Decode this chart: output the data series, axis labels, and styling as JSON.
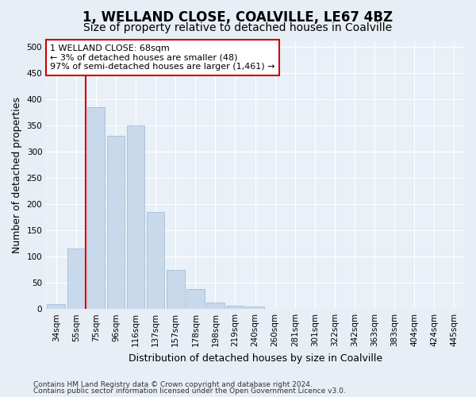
{
  "title_line1": "1, WELLAND CLOSE, COALVILLE, LE67 4BZ",
  "title_line2": "Size of property relative to detached houses in Coalville",
  "xlabel": "Distribution of detached houses by size in Coalville",
  "ylabel": "Number of detached properties",
  "categories": [
    "34sqm",
    "55sqm",
    "75sqm",
    "96sqm",
    "116sqm",
    "137sqm",
    "157sqm",
    "178sqm",
    "198sqm",
    "219sqm",
    "240sqm",
    "260sqm",
    "281sqm",
    "301sqm",
    "322sqm",
    "342sqm",
    "363sqm",
    "383sqm",
    "404sqm",
    "424sqm",
    "445sqm"
  ],
  "values": [
    10,
    115,
    385,
    330,
    350,
    185,
    75,
    38,
    12,
    6,
    5,
    1,
    0,
    0,
    0,
    0,
    1,
    0,
    0,
    1,
    1
  ],
  "bar_color": "#c8d9ec",
  "bar_edge_color": "#9ab5d0",
  "vline_x": 1.5,
  "vline_color": "#cc0000",
  "annotation_text": "1 WELLAND CLOSE: 68sqm\n← 3% of detached houses are smaller (48)\n97% of semi-detached houses are larger (1,461) →",
  "annotation_box_color": "#ffffff",
  "annotation_box_edge": "#cc0000",
  "ylim": [
    0,
    510
  ],
  "yticks": [
    0,
    50,
    100,
    150,
    200,
    250,
    300,
    350,
    400,
    450,
    500
  ],
  "footer_line1": "Contains HM Land Registry data © Crown copyright and database right 2024.",
  "footer_line2": "Contains public sector information licensed under the Open Government Licence v3.0.",
  "bg_color": "#e8eef5",
  "plot_bg_color": "#eaf0f7",
  "title_fontsize": 12,
  "subtitle_fontsize": 10,
  "axis_label_fontsize": 9,
  "tick_fontsize": 7.5,
  "annotation_fontsize": 8,
  "footer_fontsize": 6.5
}
